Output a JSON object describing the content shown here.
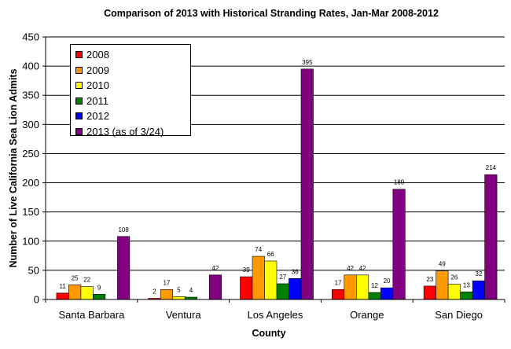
{
  "chart_data": {
    "type": "bar",
    "title": "Comparison of 2013 with Historical Stranding Rates, Jan-Mar 2008-2012",
    "xlabel": "County",
    "ylabel": "Number of Live California Sea Lion Admits",
    "ylim": [
      0,
      450
    ],
    "yticks": [
      0,
      50,
      100,
      150,
      200,
      250,
      300,
      350,
      400,
      450
    ],
    "grid": true,
    "legend_position": "top-left",
    "categories": [
      "Santa Barbara",
      "Ventura",
      "Los Angeles",
      "Orange",
      "San Diego"
    ],
    "series": [
      {
        "name": "2008",
        "color": "#ff0000",
        "values": [
          11,
          2,
          39,
          17,
          23
        ]
      },
      {
        "name": "2009",
        "color": "#ff9900",
        "values": [
          25,
          17,
          74,
          42,
          49
        ]
      },
      {
        "name": "2010",
        "color": "#ffff00",
        "values": [
          22,
          5,
          66,
          42,
          26
        ]
      },
      {
        "name": "2011",
        "color": "#008000",
        "values": [
          9,
          4,
          27,
          12,
          13
        ]
      },
      {
        "name": "2012",
        "color": "#0000ff",
        "values": [
          null,
          null,
          36,
          20,
          32
        ]
      },
      {
        "name": "2013 (as of 3/24)",
        "color": "#800080",
        "values": [
          108,
          42,
          395,
          189,
          214
        ]
      }
    ]
  }
}
